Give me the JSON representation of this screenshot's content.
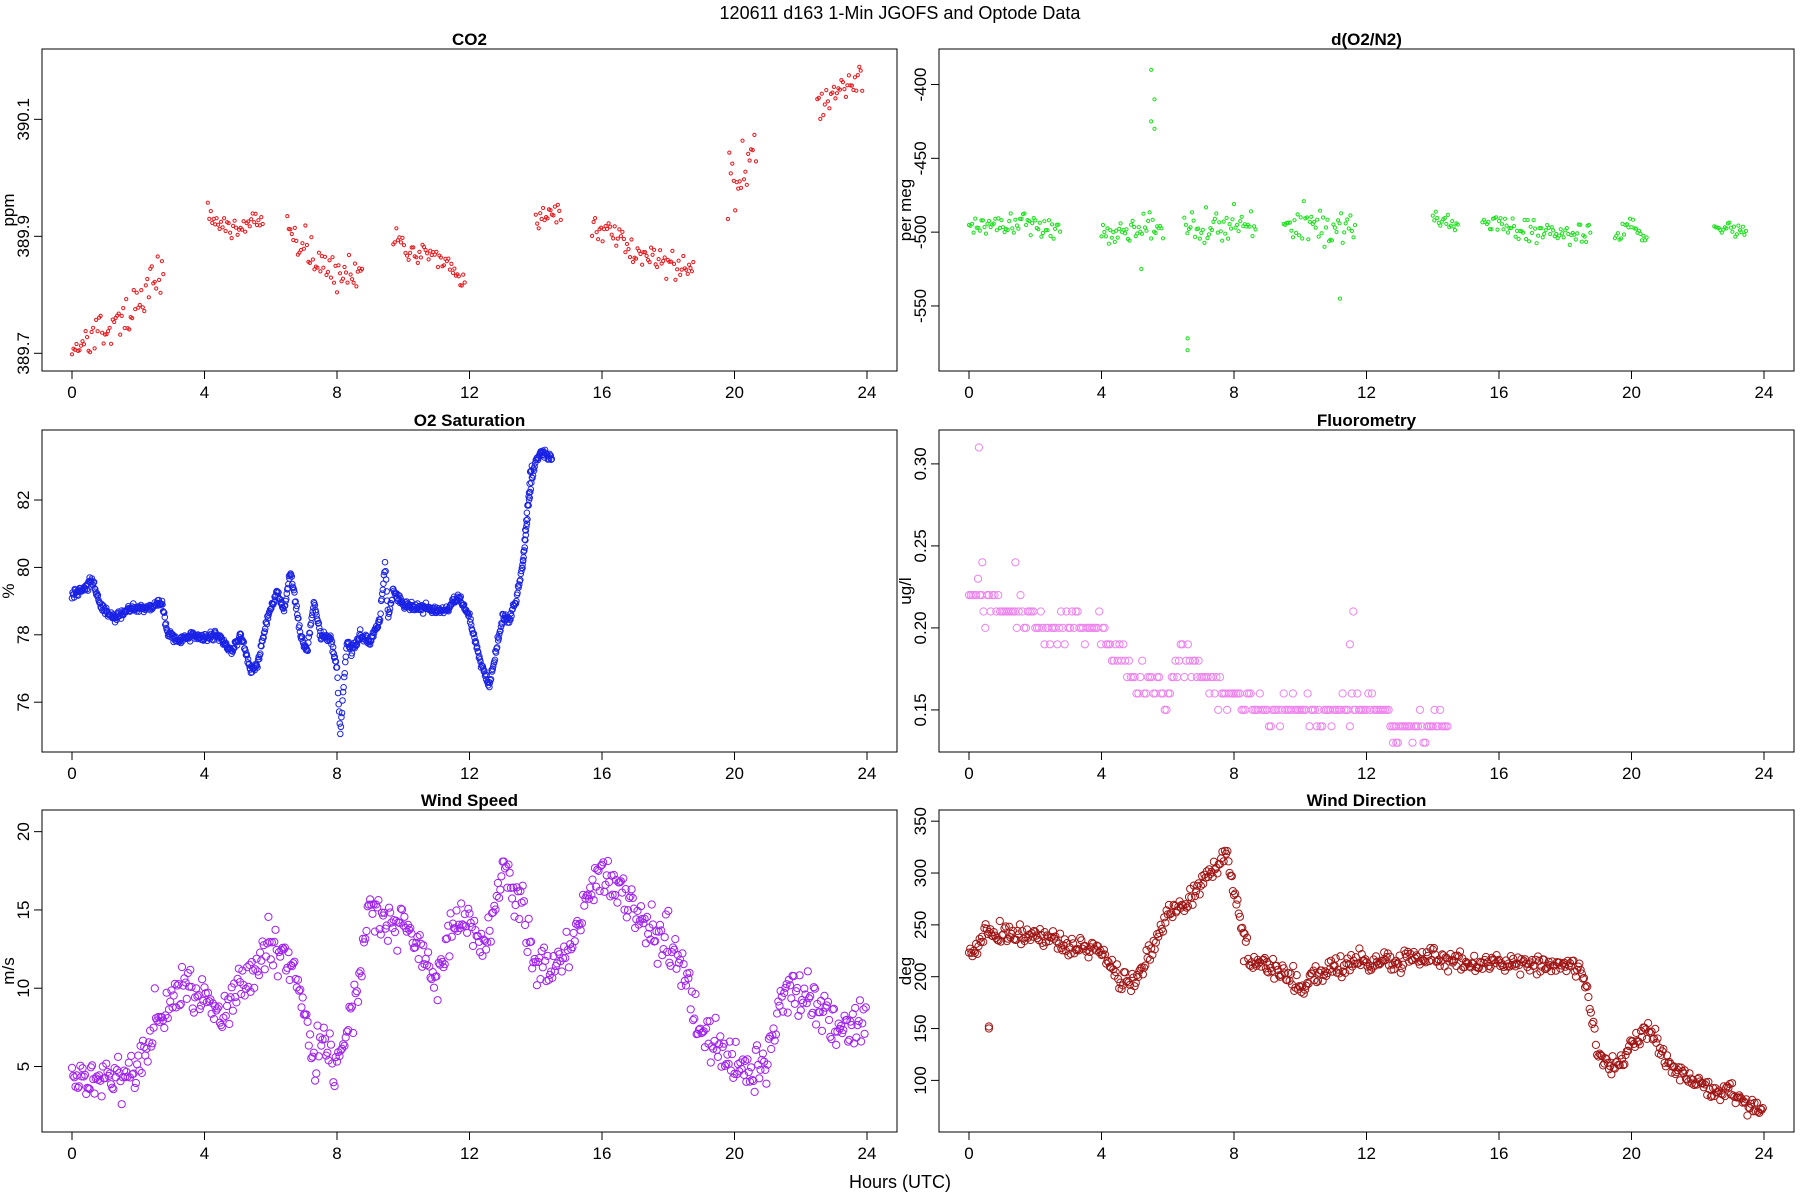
{
  "figure": {
    "title": "120611   d163   1-Min  JGOFS and Optode Data",
    "xlabel": "Hours (UTC)"
  },
  "chart_data": [
    {
      "type": "scatter",
      "id": "co2",
      "title": "CO2",
      "ylabel": "ppm",
      "color": "#e8161b",
      "xlim": [
        0,
        24
      ],
      "ylim": [
        389.68,
        390.21
      ],
      "xticks": [
        0,
        4,
        8,
        12,
        16,
        20,
        24
      ],
      "yticks": [
        389.7,
        389.9,
        390.1
      ],
      "ytick_labels": [
        "389.7",
        "389.9",
        "390.1"
      ],
      "segments": [
        {
          "x": [
            0,
            0.5,
            1.0,
            1.5,
            2.0,
            2.5,
            2.8
          ],
          "y": [
            389.71,
            389.72,
            389.74,
            389.76,
            389.78,
            389.83,
            389.85
          ],
          "noise": 0.03
        },
        {
          "x": [
            4.1,
            4.5,
            5.0,
            5.5,
            5.8
          ],
          "y": [
            389.94,
            389.92,
            389.91,
            389.93,
            389.92
          ],
          "noise": 0.015
        },
        {
          "x": [
            6.5,
            7.0,
            7.5,
            8.0,
            8.5,
            8.8
          ],
          "y": [
            389.92,
            389.89,
            389.85,
            389.83,
            389.84,
            389.86
          ],
          "noise": 0.03
        },
        {
          "x": [
            9.7,
            10.3,
            11.0,
            11.5,
            11.9
          ],
          "y": [
            389.9,
            389.87,
            389.86,
            389.84,
            389.82
          ],
          "noise": 0.02
        },
        {
          "x": [
            14.0,
            14.4,
            14.8
          ],
          "y": [
            389.93,
            389.94,
            389.93
          ],
          "noise": 0.02
        },
        {
          "x": [
            15.7,
            16.2,
            16.8,
            17.3,
            17.8,
            18.5,
            18.8
          ],
          "y": [
            389.92,
            389.9,
            389.88,
            389.87,
            389.86,
            389.84,
            389.85
          ],
          "noise": 0.025
        },
        {
          "x": [
            19.8,
            20.2,
            20.5,
            20.7
          ],
          "y": [
            389.97,
            390.02,
            390.06,
            390.1
          ],
          "noise": 0.05
        },
        {
          "x": [
            22.5,
            23.0,
            23.5,
            23.9
          ],
          "y": [
            390.12,
            390.15,
            390.16,
            390.17
          ],
          "noise": 0.025
        }
      ],
      "density": 22,
      "radius": 1.6
    },
    {
      "type": "scatter",
      "id": "o2n2",
      "title": "d(O2/N2)",
      "ylabel": "per meg",
      "color": "#19e019",
      "xlim": [
        0,
        24
      ],
      "ylim": [
        -590,
        -380
      ],
      "xticks": [
        0,
        4,
        8,
        12,
        16,
        20,
        24
      ],
      "yticks": [
        -550,
        -500,
        -450,
        -400
      ],
      "ytick_labels": [
        "-550",
        "-500",
        "-450",
        "-400"
      ],
      "segments": [
        {
          "x": [
            0,
            0.7,
            1.4,
            2.0,
            2.6,
            2.8
          ],
          "y": [
            -497,
            -494,
            -492,
            -495,
            -498,
            -500
          ],
          "noise": 8
        },
        {
          "x": [
            4.0,
            4.8,
            5.5,
            5.9
          ],
          "y": [
            -501,
            -499,
            -496,
            -502
          ],
          "noise": 9
        },
        {
          "x": [
            6.5,
            7.2,
            8.0,
            8.7
          ],
          "y": [
            -495,
            -497,
            -495,
            -493
          ],
          "noise": 12
        },
        {
          "x": [
            9.5,
            10.2,
            11.0,
            11.7
          ],
          "y": [
            -495,
            -492,
            -497,
            -500
          ],
          "noise": 13
        },
        {
          "x": [
            14.0,
            14.5,
            14.8
          ],
          "y": [
            -490,
            -493,
            -496
          ],
          "noise": 5
        },
        {
          "x": [
            15.5,
            16.5,
            17.5,
            18.5,
            18.8
          ],
          "y": [
            -492,
            -497,
            -500,
            -500,
            -498
          ],
          "noise": 6
        },
        {
          "x": [
            19.5,
            20.0,
            20.5
          ],
          "y": [
            -502,
            -495,
            -505
          ],
          "noise": 6
        },
        {
          "x": [
            22.5,
            23.5
          ],
          "y": [
            -495,
            -500
          ],
          "noise": 4
        }
      ],
      "outliers": [
        [
          5.5,
          -390
        ],
        [
          5.6,
          -410
        ],
        [
          5.5,
          -425
        ],
        [
          6.6,
          -572
        ],
        [
          6.6,
          -580
        ],
        [
          5.6,
          -430
        ],
        [
          11.2,
          -545
        ],
        [
          5.2,
          -525
        ]
      ],
      "density": 22,
      "radius": 1.6
    },
    {
      "type": "scatter",
      "id": "o2sat",
      "title": "O2 Saturation",
      "ylabel": "%",
      "color": "#1a22e6",
      "xlim": [
        0,
        24
      ],
      "ylim": [
        74.7,
        83.9
      ],
      "xticks": [
        0,
        4,
        8,
        12,
        16,
        20,
        24
      ],
      "yticks": [
        76,
        78,
        80,
        82
      ],
      "ytick_labels": [
        "76",
        "78",
        "80",
        "82"
      ],
      "segments": [
        {
          "x": [
            0,
            0.4,
            0.6,
            0.9,
            1.3,
            1.8,
            2.3,
            2.7,
            2.9,
            3.2,
            3.6,
            4.0,
            4.4,
            4.8,
            5.1,
            5.4,
            5.6,
            5.9,
            6.2,
            6.4,
            6.6,
            6.9,
            7.1,
            7.3,
            7.5,
            7.8,
            8.0,
            8.1,
            8.2,
            8.3,
            8.45,
            8.7,
            9.0,
            9.3,
            9.45,
            9.55,
            9.7,
            10.0,
            10.3,
            10.7,
            11.2,
            11.7,
            12.0,
            12.3,
            12.6,
            12.8,
            13.0,
            13.2,
            13.4,
            13.6,
            13.8,
            14.0,
            14.2,
            14.5
          ],
          "y": [
            79.2,
            79.4,
            79.6,
            78.8,
            78.5,
            78.8,
            78.8,
            79.0,
            78.0,
            77.8,
            78.0,
            77.9,
            78.0,
            77.5,
            78.0,
            76.9,
            77.1,
            78.5,
            79.3,
            78.7,
            79.9,
            78.0,
            77.5,
            79.0,
            78.0,
            77.9,
            77.0,
            75.0,
            76.5,
            77.8,
            77.5,
            78.0,
            77.8,
            78.5,
            80.1,
            78.5,
            79.3,
            78.9,
            78.8,
            78.8,
            78.7,
            79.1,
            78.5,
            77.3,
            76.5,
            77.5,
            78.5,
            78.5,
            79.0,
            80.0,
            82.0,
            83.2,
            83.4,
            83.2
          ],
          "noise": 0.12
        },
        {
          "x": [
            13.6,
            13.65,
            13.7,
            13.75,
            13.8,
            13.85,
            13.9
          ],
          "y": [
            80.0,
            80.6,
            81.2,
            81.8,
            82.3,
            82.8,
            83.1
          ],
          "noise": 0.15
        }
      ],
      "density": 60,
      "radius": 2.8
    },
    {
      "type": "scatter",
      "id": "fluor",
      "title": "Fluorometry",
      "ylabel": "ug/l",
      "color": "#ee82ee",
      "xlim": [
        0,
        24
      ],
      "ylim": [
        0.128,
        0.317
      ],
      "xticks": [
        0,
        4,
        8,
        12,
        16,
        20,
        24
      ],
      "yticks": [
        0.15,
        0.2,
        0.25,
        0.3
      ],
      "ytick_labels": [
        "0.15",
        "0.20",
        "0.25",
        "0.30"
      ],
      "segments": [
        {
          "x": [
            0,
            0.6,
            1.5,
            2.5,
            3.5,
            4.2
          ],
          "y": [
            0.22,
            0.21,
            0.21,
            0.2,
            0.2,
            0.2
          ],
          "noise": 0.01
        },
        {
          "x": [
            4.2,
            5.0,
            5.8,
            6.5,
            7.2,
            7.9
          ],
          "y": [
            0.19,
            0.17,
            0.16,
            0.18,
            0.17,
            0.16
          ],
          "noise": 0.01
        },
        {
          "x": [
            7.9,
            9.0,
            10.0,
            11.0,
            12.0,
            13.0,
            14.5
          ],
          "y": [
            0.16,
            0.15,
            0.15,
            0.15,
            0.15,
            0.14,
            0.14
          ],
          "noise": 0.008
        }
      ],
      "outliers": [
        [
          0.3,
          0.31
        ],
        [
          0.4,
          0.24
        ],
        [
          1.4,
          0.24
        ],
        [
          11.6,
          0.21
        ],
        [
          11.5,
          0.19
        ],
        [
          12.8,
          0.13
        ],
        [
          12.9,
          0.13
        ]
      ],
      "quantize": 0.01,
      "density": 18,
      "radius": 3.6
    },
    {
      "type": "scatter",
      "id": "wspd",
      "title": "Wind Speed",
      "ylabel": "m/s",
      "color": "#a020f0",
      "xlim": [
        0,
        24
      ],
      "ylim": [
        1.2,
        21.0
      ],
      "xticks": [
        0,
        4,
        8,
        12,
        16,
        20,
        24
      ],
      "yticks": [
        5,
        10,
        15,
        20
      ],
      "ytick_labels": [
        "5",
        "10",
        "15",
        "20"
      ],
      "segments": [
        {
          "x": [
            0,
            0.5,
            1.0,
            1.5,
            2.0,
            2.5,
            3.0,
            3.5,
            4.0,
            4.5,
            5.0,
            5.5,
            6.0,
            6.5,
            7.0,
            7.3,
            7.6,
            8.0,
            8.3,
            8.6,
            9.0,
            9.5,
            10.0,
            10.5,
            11.0,
            11.5,
            12.0,
            12.5,
            13.0,
            13.5,
            14.0,
            14.5,
            15.0,
            15.5,
            16.0,
            16.5,
            17.0,
            17.5,
            18.0,
            18.5,
            19.0,
            19.5,
            20.0,
            20.5,
            21.0,
            21.5,
            22.0,
            22.5,
            23.0,
            23.5,
            24.0
          ],
          "y": [
            4.5,
            4.0,
            4.5,
            4.5,
            5.0,
            8.0,
            9.5,
            10.0,
            9.5,
            8.0,
            10.0,
            11.0,
            13.0,
            12.0,
            9.0,
            5.0,
            6.5,
            5.0,
            7.0,
            10.0,
            16.0,
            14.0,
            14.5,
            12.0,
            10.0,
            14.5,
            14.5,
            13.0,
            18.0,
            16.0,
            11.5,
            11.0,
            12.5,
            16.0,
            17.5,
            16.5,
            14.5,
            13.5,
            13.0,
            11.0,
            7.0,
            6.5,
            5.0,
            4.5,
            5.5,
            10.0,
            9.5,
            9.0,
            7.5,
            7.5,
            7.0
          ],
          "noise": 1.4
        }
      ],
      "density": 28,
      "radius": 3.6
    },
    {
      "type": "scatter",
      "id": "wdir",
      "title": "Wind Direction",
      "ylabel": "deg",
      "color": "#a01414",
      "xlim": [
        0,
        24
      ],
      "ylim": [
        56,
        355
      ],
      "xticks": [
        0,
        4,
        8,
        12,
        16,
        20,
        24
      ],
      "yticks": [
        100,
        150,
        200,
        250,
        300,
        350
      ],
      "ytick_labels": [
        "100",
        "150",
        "200",
        "250",
        "300",
        "350"
      ],
      "segments": [
        {
          "x": [
            0,
            0.5,
            1.0,
            2.0,
            3.0,
            4.0,
            4.5,
            5.0,
            5.5,
            6.0,
            6.5,
            7.0,
            7.5,
            7.8,
            8.0,
            8.5,
            9.0,
            9.5,
            10.0,
            10.5,
            11.0,
            12.0,
            13.0,
            14.0,
            15.0,
            16.0,
            17.0,
            18.0,
            18.5,
            18.7,
            19.0,
            19.5,
            20.0,
            20.5,
            21.0,
            21.5,
            22.0,
            22.5,
            23.0,
            23.5,
            24.0
          ],
          "y": [
            215,
            245,
            240,
            240,
            230,
            225,
            200,
            195,
            225,
            260,
            270,
            290,
            310,
            320,
            280,
            215,
            210,
            205,
            190,
            200,
            210,
            215,
            215,
            220,
            215,
            213,
            212,
            213,
            205,
            180,
            120,
            110,
            135,
            150,
            120,
            105,
            95,
            90,
            90,
            78,
            70
          ],
          "noise": 9
        }
      ],
      "outliers": [
        [
          0.6,
          152
        ],
        [
          0.6,
          150
        ],
        [
          8.3,
          215
        ],
        [
          9.0,
          205
        ]
      ],
      "density": 28,
      "radius": 3.6
    }
  ]
}
